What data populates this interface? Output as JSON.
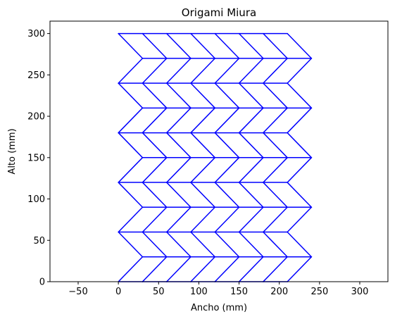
{
  "chart_data": {
    "type": "line",
    "title": "Origami Miura",
    "xlabel": "Ancho (mm)",
    "ylabel": "Alto (mm)",
    "xlim": [
      -85,
      335
    ],
    "ylim": [
      0,
      315
    ],
    "xticks": [
      -50,
      0,
      50,
      100,
      150,
      200,
      250,
      300
    ],
    "yticks": [
      0,
      50,
      100,
      150,
      200,
      250,
      300
    ],
    "grid": false,
    "line_color": "#0000ff",
    "pattern": {
      "columns": 7,
      "rows": 10,
      "cell_width": 30,
      "cell_height": 30,
      "offset": 30
    }
  }
}
